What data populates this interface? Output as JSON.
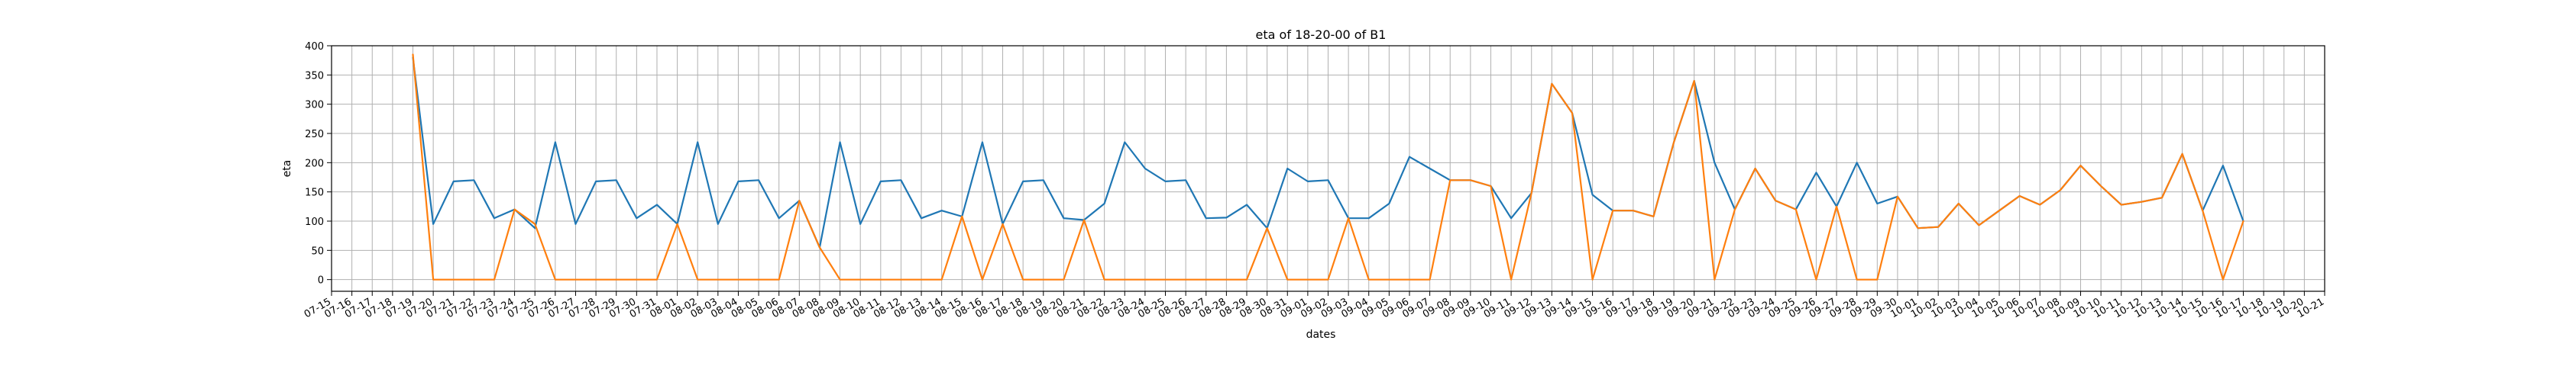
{
  "chart_data": {
    "type": "line",
    "title": "eta of 18-20-00 of B1",
    "xlabel": "dates",
    "ylabel": "eta",
    "ylim": [
      -20,
      400
    ],
    "yticks": [
      0,
      50,
      100,
      150,
      200,
      250,
      300,
      350,
      400
    ],
    "grid": true,
    "x_start": "07-15",
    "x_ticks": [
      "07-15",
      "07-16",
      "07-17",
      "07-18",
      "07-19",
      "07-20",
      "07-21",
      "07-22",
      "07-23",
      "07-24",
      "07-25",
      "07-26",
      "07-27",
      "07-28",
      "07-29",
      "07-30",
      "07-31",
      "08-01",
      "08-02",
      "08-03",
      "08-04",
      "08-05",
      "08-06",
      "08-07",
      "08-08",
      "08-09",
      "08-10",
      "08-11",
      "08-12",
      "08-13",
      "08-14",
      "08-15",
      "08-16",
      "08-17",
      "08-18",
      "08-19",
      "08-20",
      "08-21",
      "08-22",
      "08-23",
      "08-24",
      "08-25",
      "08-26",
      "08-27",
      "08-28",
      "08-29",
      "08-30",
      "08-31",
      "09-01",
      "09-02",
      "09-03",
      "09-04",
      "09-05",
      "09-06",
      "09-07",
      "09-08",
      "09-09",
      "09-10",
      "09-11",
      "09-12",
      "09-13",
      "09-14",
      "09-15",
      "09-16",
      "09-17",
      "09-18",
      "09-19",
      "09-20",
      "09-21",
      "09-22",
      "09-23",
      "09-24",
      "09-25",
      "09-26",
      "09-27",
      "09-28",
      "09-29",
      "09-30",
      "10-01",
      "10-02",
      "10-03",
      "10-04",
      "10-05",
      "10-06",
      "10-07",
      "10-08",
      "10-09",
      "10-10",
      "10-11",
      "10-12",
      "10-13",
      "10-14",
      "10-15",
      "10-16",
      "10-17",
      "10-18",
      "10-19",
      "10-20",
      "10-21"
    ],
    "series": [
      {
        "color": "#1f77b4",
        "x_start": "07-19",
        "values": [
          380,
          95,
          168,
          170,
          105,
          120,
          88,
          235,
          95,
          168,
          170,
          105,
          128,
          95,
          235,
          95,
          168,
          170,
          105,
          135,
          55,
          235,
          95,
          168,
          170,
          105,
          118,
          108,
          235,
          95,
          168,
          170,
          105,
          102,
          130,
          235,
          190,
          168,
          170,
          105,
          106,
          128,
          88,
          190,
          168,
          170,
          105,
          105,
          130,
          210,
          190,
          170,
          170,
          160,
          105,
          148,
          335,
          285,
          145,
          118,
          118,
          108,
          235,
          340,
          200,
          120,
          190,
          135,
          120,
          183,
          125,
          200,
          130,
          142,
          88,
          90,
          130,
          93,
          118,
          143,
          128,
          153,
          195,
          160,
          128,
          133,
          140,
          215,
          118,
          195,
          100
        ]
      },
      {
        "color": "#ff7f0e",
        "x_start": "07-19",
        "values": [
          385,
          0,
          0,
          0,
          0,
          120,
          95,
          0,
          0,
          0,
          0,
          0,
          0,
          95,
          0,
          0,
          0,
          0,
          0,
          135,
          55,
          0,
          0,
          0,
          0,
          0,
          0,
          108,
          0,
          95,
          0,
          0,
          0,
          102,
          0,
          0,
          0,
          0,
          0,
          0,
          0,
          0,
          88,
          0,
          0,
          0,
          105,
          0,
          0,
          0,
          0,
          170,
          170,
          160,
          0,
          148,
          335,
          285,
          0,
          118,
          118,
          108,
          235,
          340,
          0,
          120,
          190,
          135,
          120,
          0,
          125,
          0,
          0,
          142,
          88,
          90,
          130,
          93,
          118,
          143,
          128,
          153,
          195,
          160,
          128,
          133,
          140,
          215,
          118,
          0,
          100
        ]
      }
    ]
  }
}
